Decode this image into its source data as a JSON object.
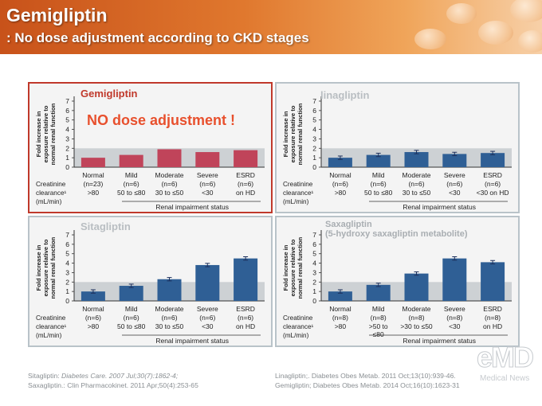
{
  "slide": {
    "title": "Gemigliptin",
    "subtitle": ": No dose adjustment according to CKD stages"
  },
  "colors": {
    "red_bar": "#c0445a",
    "blue_bar": "#2f5f95",
    "reference_band": "#cdd1d4",
    "highlight": "#e8502d",
    "panel_border_red": "#c0392b"
  },
  "shared": {
    "ylabel": [
      "Fold increase in",
      "exposure relative to",
      "normal renal function"
    ],
    "xlabel": "Renal impairment status",
    "clearance_label": [
      "Creatinine",
      "clearance¹",
      "(mL/min)"
    ],
    "yticks": [
      "0",
      "1",
      "2",
      "3",
      "4",
      "5",
      "6",
      "7"
    ]
  },
  "panels": {
    "gemi": {
      "name": "Gemigliptin",
      "note": "NO dose adjustment !"
    },
    "lina": {
      "name": "linagliptin"
    },
    "sita": {
      "name": "Sitagliptin"
    },
    "saxa": {
      "name": "Saxagliptin",
      "subname": "(5-hydroxy saxagliptin metabolite)"
    }
  },
  "references": {
    "left": [
      {
        "prefix": "Sitagliptin: ",
        "journal": "Diabetes Care. 2007 Jul;30(7):1862-4;"
      },
      {
        "prefix": "Saxagliptin.: Clin Pharmacokinet. 2011 Apr;50(4):253-65",
        "journal": ""
      }
    ],
    "right": [
      "Linagliptin;. Diabetes Obes Metab. 2011 Oct;13(10):939-46.",
      "Gemigliptin; Diabetes Obes Metab. 2014 Oct;16(10):1623-31"
    ]
  },
  "watermark": {
    "logo": "eMD",
    "sub": "Medical News"
  },
  "chart_data": [
    {
      "type": "bar",
      "title": "Gemigliptin",
      "annotation": "NO dose adjustment !",
      "ylabel": "Fold increase in exposure relative to normal renal function",
      "xlabel": "Renal impairment status",
      "ylim": [
        0,
        7
      ],
      "error_bars": false,
      "reference_band": [
        1,
        2
      ],
      "categories": [
        "Normal",
        "Mild",
        "Moderate",
        "Severe",
        "ESRD"
      ],
      "n_labels": [
        "(n=23)",
        "(n=6)",
        "(n=6)",
        "(n=6)",
        "(n=6)"
      ],
      "clearance_labels": [
        [
          ">80"
        ],
        [
          "50 to ≤80"
        ],
        [
          "30 to ≤50"
        ],
        [
          "<30"
        ],
        [
          "on HD"
        ]
      ],
      "values": [
        1.0,
        1.3,
        1.9,
        1.6,
        1.8
      ],
      "color": "red"
    },
    {
      "type": "bar",
      "title": "linagliptin",
      "ylabel": "Fold increase in exposure relative to normal renal function",
      "xlabel": "Renal impairment status",
      "ylim": [
        0,
        7
      ],
      "error_bars": true,
      "reference_band": [
        1,
        2
      ],
      "categories": [
        "Normal",
        "Mild",
        "Moderate",
        "Severe",
        "ESRD"
      ],
      "n_labels": [
        "(n=6)",
        "(n=6)",
        "(n=6)",
        "(n=6)",
        "(n=6)"
      ],
      "clearance_labels": [
        [
          ">80"
        ],
        [
          "50 to ≤80"
        ],
        [
          "30 to ≤50"
        ],
        [
          "<30"
        ],
        [
          "<30 on HD"
        ]
      ],
      "values": [
        1.0,
        1.3,
        1.6,
        1.4,
        1.5
      ],
      "color": "blue"
    },
    {
      "type": "bar",
      "title": "Sitagliptin",
      "ylabel": "Fold increase in exposure relative to normal renal function",
      "xlabel": "Renal impairment status",
      "ylim": [
        0,
        7
      ],
      "error_bars": true,
      "reference_band": [
        1,
        2
      ],
      "categories": [
        "Normal",
        "Mild",
        "Moderate",
        "Severe",
        "ESRD"
      ],
      "n_labels": [
        "(n=6)",
        "(n=6)",
        "(n=6)",
        "(n=6)",
        "(n=6)"
      ],
      "clearance_labels": [
        [
          ">80"
        ],
        [
          "50 to ≤80"
        ],
        [
          "30 to ≤50"
        ],
        [
          "<30"
        ],
        [
          "on HD"
        ]
      ],
      "values": [
        1.0,
        1.6,
        2.3,
        3.8,
        4.5
      ],
      "color": "blue"
    },
    {
      "type": "bar",
      "title": "Saxagliptin",
      "subtitle": "(5-hydroxy saxagliptin metabolite)",
      "ylabel": "Fold increase in exposure relative to normal renal function",
      "xlabel": "Renal impairment status",
      "ylim": [
        0,
        7
      ],
      "error_bars": true,
      "reference_band": [
        1,
        2
      ],
      "categories": [
        "Normal",
        "Mild",
        "Moderate",
        "Severe",
        "ESRD"
      ],
      "n_labels": [
        "(n=8)",
        "(n=8)",
        "(n=8)",
        "(n=8)",
        "(n=8)"
      ],
      "clearance_labels": [
        [
          ">80"
        ],
        [
          ">50 to",
          "≤80"
        ],
        [
          ">30 to ≤50"
        ],
        [
          "<30"
        ],
        [
          "on HD"
        ]
      ],
      "values": [
        1.0,
        1.7,
        2.9,
        4.5,
        4.1
      ],
      "color": "blue"
    }
  ]
}
